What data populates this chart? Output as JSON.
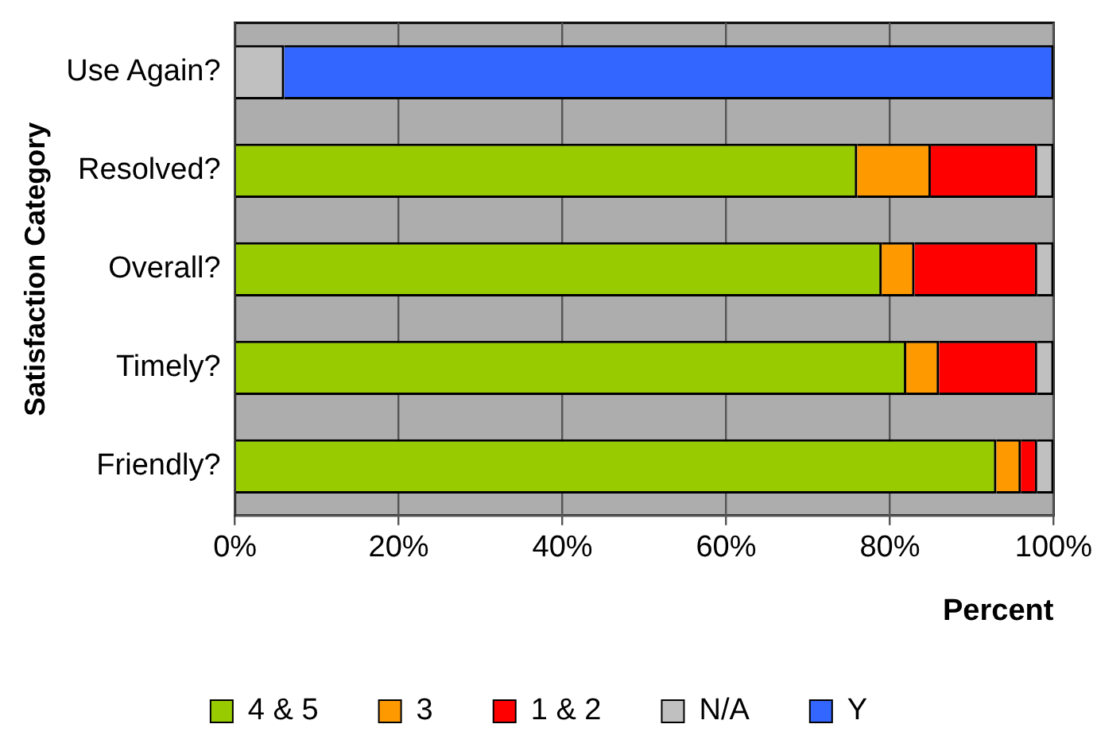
{
  "chart_data": {
    "type": "bar",
    "orientation": "horizontal",
    "stacked": true,
    "xlabel": "Percent",
    "ylabel": "Satisfaction Category",
    "categories": [
      "Use Again?",
      "Resolved?",
      "Overall?",
      "Timely?",
      "Friendly?"
    ],
    "series": [
      {
        "name": "4 & 5",
        "color": "#99cc00",
        "values": [
          0,
          76,
          79,
          82,
          93
        ]
      },
      {
        "name": "3",
        "color": "#ff9900",
        "values": [
          0,
          9,
          4,
          4,
          3
        ]
      },
      {
        "name": "1 & 2",
        "color": "#ff0000",
        "values": [
          0,
          13,
          15,
          12,
          2
        ]
      },
      {
        "name": "N/A",
        "color": "#c0c0c0",
        "values": [
          6,
          2,
          2,
          2,
          2
        ]
      },
      {
        "name": "Y",
        "color": "#3366ff",
        "values": [
          94,
          0,
          0,
          0,
          0
        ]
      }
    ],
    "xlim": [
      0,
      100
    ],
    "xticks": [
      {
        "value": 0,
        "label": "0%"
      },
      {
        "value": 20,
        "label": "20%"
      },
      {
        "value": 40,
        "label": "40%"
      },
      {
        "value": 60,
        "label": "60%"
      },
      {
        "value": 80,
        "label": "80%"
      },
      {
        "value": 100,
        "label": "100%"
      }
    ],
    "grid": "x",
    "legend": "bottom"
  }
}
